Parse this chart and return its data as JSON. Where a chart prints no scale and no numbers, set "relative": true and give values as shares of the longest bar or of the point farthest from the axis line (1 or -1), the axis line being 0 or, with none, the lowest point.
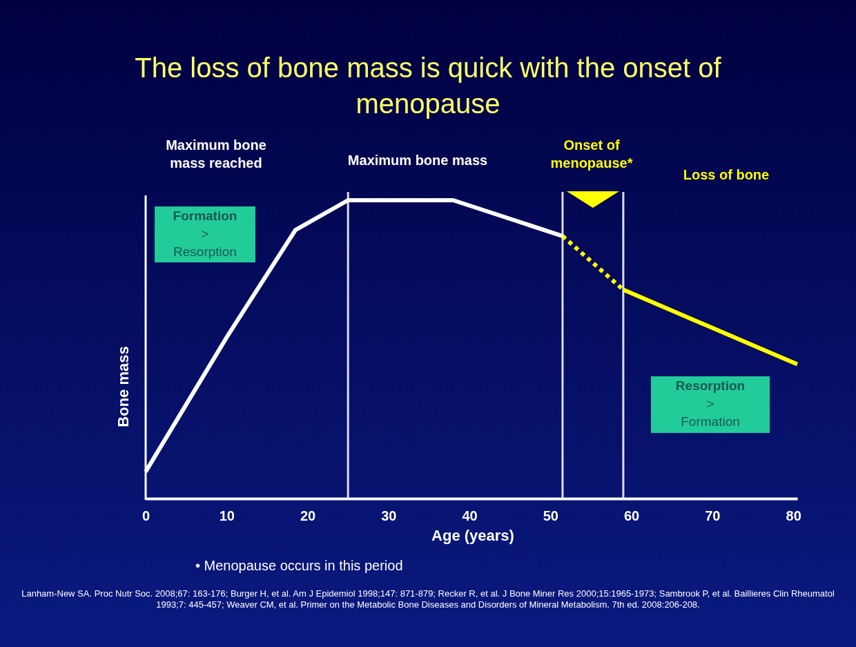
{
  "chart_data": {
    "type": "line",
    "title": "The loss of bone mass is quick with the onset of menopause",
    "xlabel": "Age (years)",
    "ylabel": "Bone mass",
    "relative": true,
    "xlim": [
      0,
      80.5
    ],
    "xticks": [
      0,
      10,
      20,
      30,
      40,
      50,
      60,
      70,
      80
    ],
    "grid": false,
    "marker": "none",
    "series": [
      {
        "color": "#ffffff",
        "line_style": "solid",
        "x": [
          0,
          10,
          18.5,
          25,
          38,
          51.5
        ],
        "values": [
          0.09,
          0.54,
          0.9,
          1,
          1,
          0.88
        ]
      },
      {
        "color": "#ffff00",
        "line_style": "dotted",
        "x": [
          51.5,
          59
        ],
        "values": [
          0.88,
          0.7
        ]
      },
      {
        "color": "#ffff00",
        "line_style": "solid",
        "x": [
          59,
          80.5
        ],
        "values": [
          0.7,
          0.45
        ]
      }
    ],
    "ref_lines": [
      {
        "axis": "x",
        "value": 25,
        "color": "#dcdcf0"
      },
      {
        "axis": "x",
        "value": 51.5,
        "color": "#dcdcf0"
      },
      {
        "axis": "x",
        "value": 59,
        "color": "#dcdcf0"
      }
    ],
    "annotations": [
      "Maximum bone\nmass reached",
      "Maximum bone mass",
      "Onset of\nmenopause*",
      "Loss of bone",
      "Formation\n>\nResorption",
      "Resorption\n>\nFormation",
      "• Menopause occurs in this period",
      "Lanham-New SA. Proc Nutr Soc. 2008;67: 163-176; Burger H, et al. Am J Epidemiol 1998;147: 871-879; Recker R, et al. J Bone Miner Res 2000;15:1965-1973; Sambrook P, et al. Baillieres Clin Rheumatol 1993;7: 445-457; Weaver CM, et al. Primer on the Metabolic Bone Diseases and Disorders of Mineral Metabolism. 7th ed. 2008:206-208."
    ]
  }
}
